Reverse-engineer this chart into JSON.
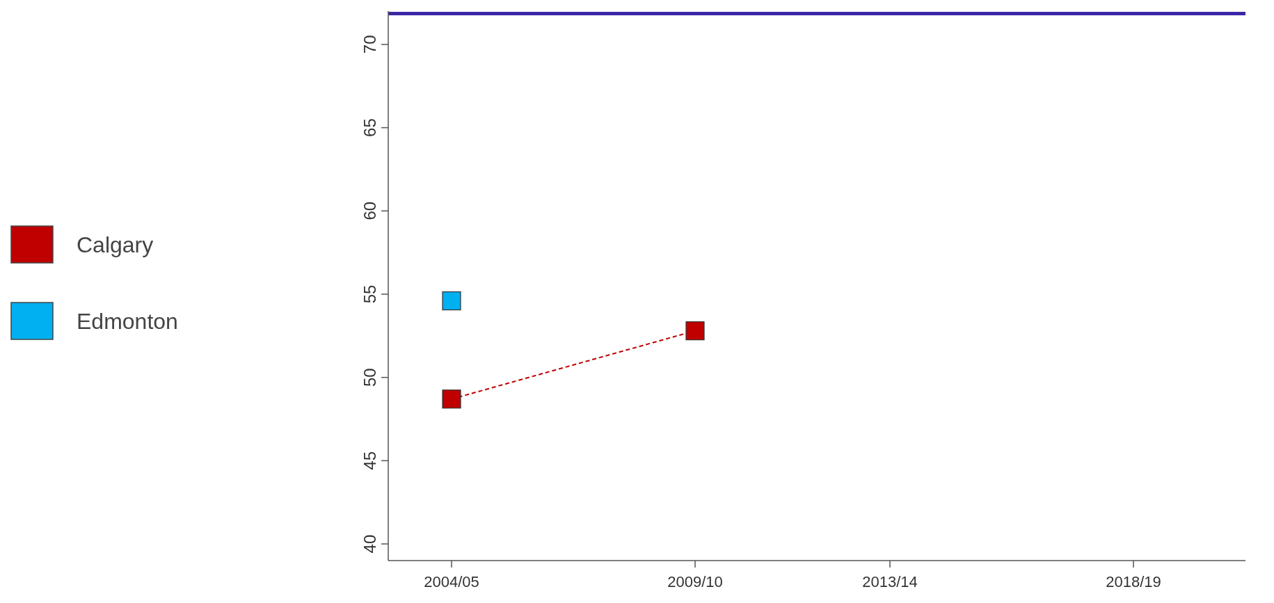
{
  "chart_data": {
    "type": "line",
    "categories": [
      null,
      "2004/05",
      null,
      null,
      null,
      null,
      "2009/10",
      null,
      null,
      null,
      "2013/14",
      null,
      null,
      null,
      null,
      "2018/19",
      null,
      null
    ],
    "series": [
      {
        "name": "Calgary",
        "color": "#c00000",
        "values": [
          null,
          48.7,
          null,
          null,
          null,
          null,
          52.8,
          null,
          null,
          null,
          null,
          null,
          null,
          null,
          null,
          null,
          null,
          null
        ],
        "line_style": "dashed"
      },
      {
        "name": "Edmonton",
        "color": "#00b0f0",
        "values": [
          null,
          54.6,
          null,
          null,
          null,
          null,
          null,
          null,
          null,
          null,
          null,
          null,
          null,
          null,
          null,
          null,
          null,
          null
        ],
        "line_style": "dashed"
      }
    ],
    "ylim": [
      39,
      72
    ],
    "yticks": [
      40,
      45,
      50,
      55,
      60,
      65,
      70
    ],
    "ref_lines": [
      {
        "axis": "y",
        "value": 71.85,
        "label": null,
        "color": "#3b28a6"
      }
    ],
    "marker": "square",
    "legend": "left",
    "grid": false
  }
}
